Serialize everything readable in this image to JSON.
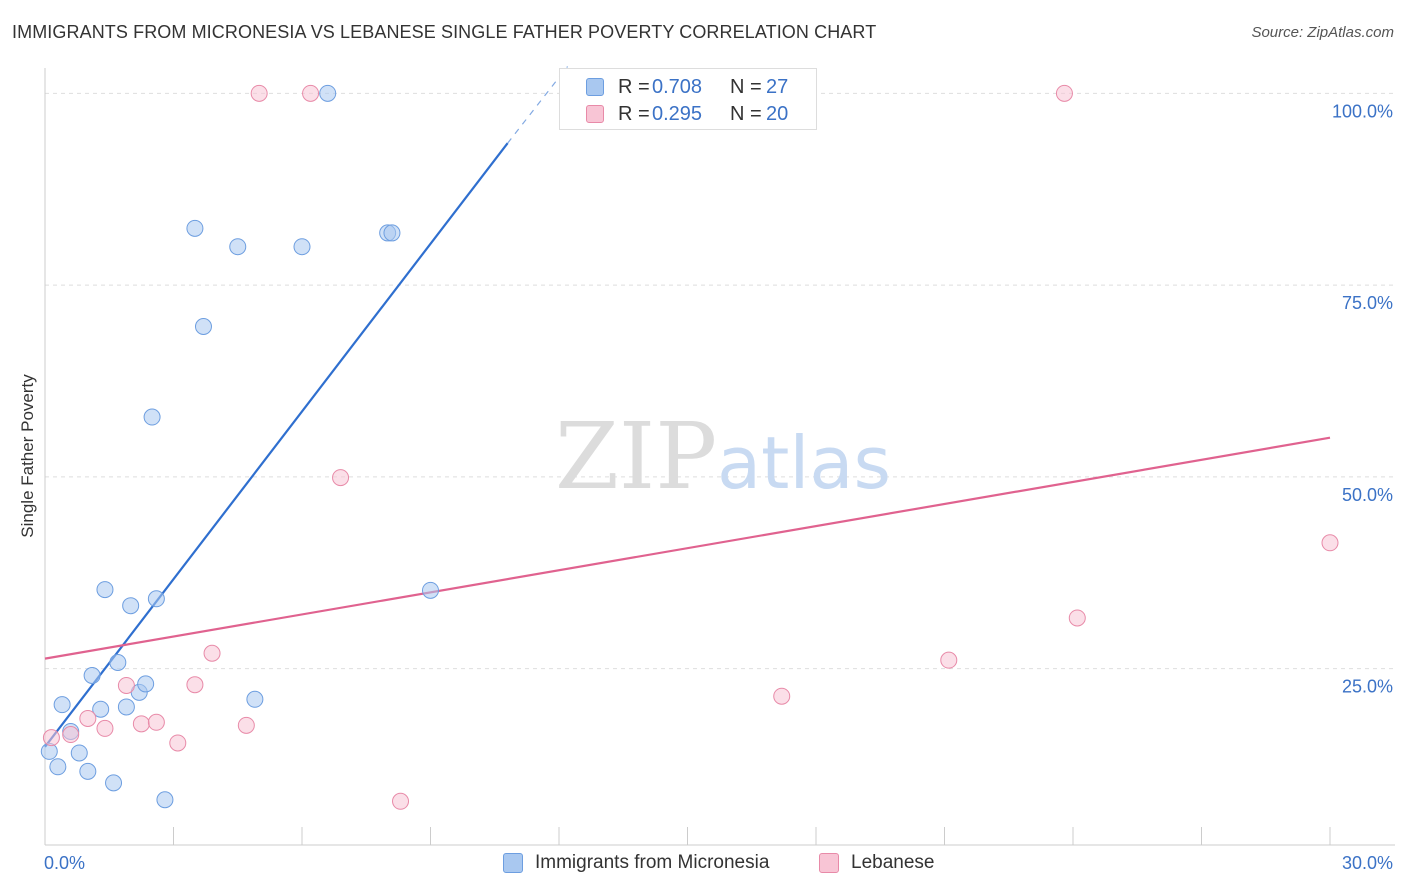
{
  "header": {
    "title": "IMMIGRANTS FROM MICRONESIA VS LEBANESE SINGLE FATHER POVERTY CORRELATION CHART",
    "source": "Source: ZipAtlas.com"
  },
  "watermark": {
    "part1": "ZIP",
    "part2": "atlas"
  },
  "legend": {
    "rows": [
      {
        "r_label": "R =",
        "r_value": "0.708",
        "n_label": "N =",
        "n_value": "27",
        "color": "#a9c8f0",
        "border": "#6d9ee0"
      },
      {
        "r_label": "R =",
        "r_value": "0.295",
        "n_label": "N =",
        "n_value": "20",
        "color": "#f8c5d5",
        "border": "#e88aa8"
      }
    ]
  },
  "bottom_legend": {
    "items": [
      {
        "label": "Immigrants from Micronesia",
        "color": "#a9c8f0",
        "border": "#6d9ee0"
      },
      {
        "label": "Lebanese",
        "color": "#f8c5d5",
        "border": "#e88aa8"
      }
    ]
  },
  "chart_data": {
    "type": "scatter",
    "title": "IMMIGRANTS FROM MICRONESIA VS LEBANESE SINGLE FATHER POVERTY CORRELATION CHART",
    "xlabel": "",
    "ylabel": "Single Father Poverty",
    "xlim": [
      0,
      30
    ],
    "ylim": [
      2,
      102
    ],
    "x_tick_labels": [
      "0.0%",
      "30.0%"
    ],
    "y_ticks": [
      25,
      50,
      75,
      100
    ],
    "y_tick_labels": [
      "25.0%",
      "50.0%",
      "75.0%",
      "100.0%"
    ],
    "grid": true,
    "series": [
      {
        "name": "Immigrants from Micronesia",
        "color": "#a9c8f0",
        "stroke": "#6d9ee0",
        "line_color": "#2f6fcf",
        "points": [
          [
            0.1,
            14.2
          ],
          [
            0.3,
            12.2
          ],
          [
            0.4,
            20.3
          ],
          [
            0.6,
            16.8
          ],
          [
            0.8,
            14.0
          ],
          [
            1.0,
            11.6
          ],
          [
            1.1,
            24.1
          ],
          [
            1.3,
            19.7
          ],
          [
            1.4,
            35.3
          ],
          [
            1.6,
            10.1
          ],
          [
            1.7,
            25.8
          ],
          [
            1.9,
            20.0
          ],
          [
            2.0,
            33.2
          ],
          [
            2.2,
            21.9
          ],
          [
            2.35,
            23.0
          ],
          [
            2.5,
            57.8
          ],
          [
            2.6,
            34.1
          ],
          [
            2.8,
            7.9
          ],
          [
            3.5,
            82.4
          ],
          [
            3.7,
            69.6
          ],
          [
            4.5,
            80.0
          ],
          [
            4.9,
            21.0
          ],
          [
            6.0,
            80.0
          ],
          [
            6.6,
            100.0
          ],
          [
            8.0,
            81.8
          ],
          [
            8.1,
            81.8
          ],
          [
            9.0,
            35.2
          ]
        ],
        "trend": {
          "x0": 0,
          "y0": 14.8,
          "x1": 10.8,
          "y1": 93.5,
          "dash_x1": 10.8,
          "dash_y1": 93.5,
          "dash_x2": 12.2,
          "dash_y2": 103.5
        }
      },
      {
        "name": "Lebanese",
        "color": "#f8c5d5",
        "stroke": "#e88aa8",
        "line_color": "#e0628f",
        "points": [
          [
            0.15,
            16.0
          ],
          [
            0.6,
            16.4
          ],
          [
            1.0,
            18.5
          ],
          [
            1.4,
            17.2
          ],
          [
            1.9,
            22.8
          ],
          [
            2.25,
            17.8
          ],
          [
            2.6,
            18.0
          ],
          [
            3.1,
            15.3
          ],
          [
            3.5,
            22.9
          ],
          [
            3.9,
            27.0
          ],
          [
            4.7,
            17.6
          ],
          [
            5.0,
            100.0
          ],
          [
            6.2,
            100.0
          ],
          [
            6.9,
            49.9
          ],
          [
            8.3,
            7.7
          ],
          [
            17.2,
            21.4
          ],
          [
            21.1,
            26.1
          ],
          [
            23.8,
            100.0
          ],
          [
            24.1,
            31.6
          ],
          [
            30.0,
            41.4
          ]
        ],
        "trend": {
          "x0": 0,
          "y0": 26.3,
          "x1": 30,
          "y1": 55.1
        }
      }
    ]
  }
}
